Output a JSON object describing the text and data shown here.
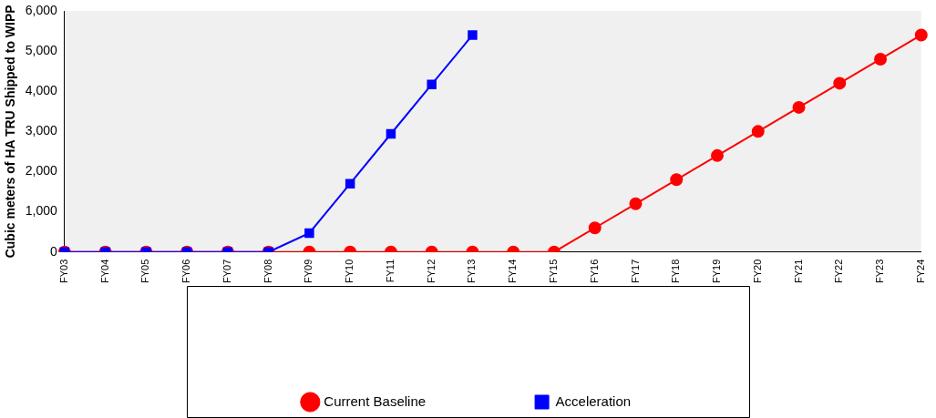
{
  "chart_data": {
    "type": "line",
    "ylabel": "Cubic meters of HA TRU Shipped to WIPP",
    "categories": [
      "FY03",
      "FY04",
      "FY05",
      "FY06",
      "FY07",
      "FY08",
      "FY09",
      "FY10",
      "FY11",
      "FY12",
      "FY13",
      "FY14",
      "FY15",
      "FY16",
      "FY17",
      "FY18",
      "FY19",
      "FY20",
      "FY21",
      "FY22",
      "FY23",
      "FY24"
    ],
    "series": [
      {
        "name": "Current Baseline",
        "color": "#ff0000",
        "marker": "circle",
        "values": [
          0,
          0,
          0,
          0,
          0,
          0,
          0,
          0,
          0,
          0,
          0,
          0,
          0,
          600,
          1200,
          1800,
          2400,
          3000,
          3600,
          4200,
          4800,
          5400
        ]
      },
      {
        "name": "Acceleration",
        "color": "#0000ff",
        "marker": "square",
        "values": [
          0,
          0,
          0,
          0,
          0,
          0,
          470,
          1700,
          2940,
          4170,
          5400,
          null,
          null,
          null,
          null,
          null,
          null,
          null,
          null,
          null,
          null,
          null
        ]
      }
    ],
    "ylim": [
      0,
      6000
    ],
    "yticks": [
      0,
      {
        "value": 1000,
        "label": "1,000"
      },
      {
        "value": 2000,
        "label": "2,000"
      },
      {
        "value": 3000,
        "label": "3,000"
      },
      {
        "value": 4000,
        "label": "4,000"
      },
      {
        "value": 5000,
        "label": "5,000"
      },
      {
        "value": 6000,
        "label": "6,000"
      }
    ],
    "grid": false,
    "legend": "bottom",
    "line_style": "solid"
  }
}
